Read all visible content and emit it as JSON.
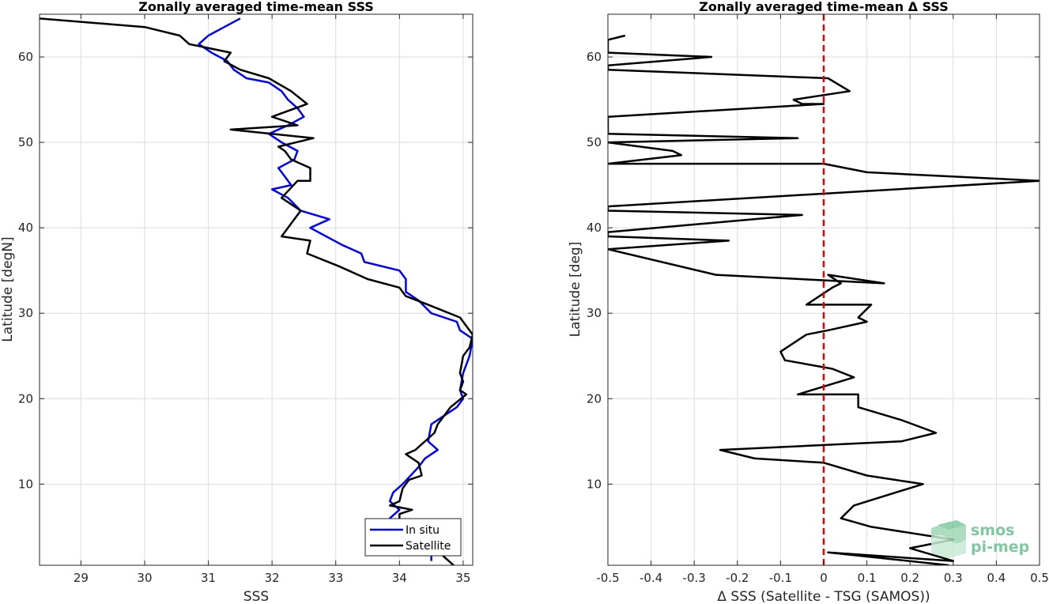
{
  "chart_data": [
    {
      "type": "line",
      "title": "Zonally averaged time-mean SSS",
      "xlabel": "SSS",
      "ylabel": "Latitude [degN]",
      "xlim": [
        28.35,
        35.15
      ],
      "ylim": [
        0.5,
        65
      ],
      "xticks": [
        29,
        30,
        31,
        32,
        33,
        34,
        35
      ],
      "yticks": [
        10,
        20,
        30,
        40,
        50,
        60
      ],
      "grid": true,
      "legend_position": "bottom-right",
      "series": [
        {
          "name": "In situ",
          "color": "#0000ff",
          "x": [
            31.5,
            31.25,
            31.0,
            30.85,
            31.05,
            31.3,
            31.4,
            31.6,
            31.95,
            32.15,
            32.25,
            32.4,
            32.5,
            32.25,
            31.95,
            32.15,
            32.4,
            32.35,
            32.1,
            32.2,
            32.3,
            32.0,
            32.25,
            32.45,
            32.9,
            32.6,
            32.85,
            33.1,
            33.4,
            33.45,
            34.0,
            34.1,
            34.1,
            34.3,
            34.5,
            34.9,
            34.95,
            35.15,
            35.1,
            35.0,
            34.95,
            35.0,
            34.9,
            34.5,
            34.45,
            34.6,
            34.4,
            34.3,
            34.05,
            33.9,
            33.85,
            34.0,
            33.85,
            34.5,
            34.5
          ],
          "y": [
            64.5,
            63.5,
            62.5,
            61.5,
            60.5,
            59.5,
            58.5,
            57.5,
            57.0,
            56.0,
            55.0,
            54.0,
            53.0,
            52.0,
            51.0,
            50.0,
            49.0,
            48.0,
            47.0,
            46.0,
            45.0,
            44.5,
            43.5,
            42.0,
            41.0,
            40.0,
            39.0,
            38.0,
            37.0,
            36.0,
            35.0,
            34.0,
            32.5,
            31.5,
            30.0,
            29.0,
            28.0,
            27.0,
            25.0,
            23.0,
            21.0,
            20.0,
            19.0,
            17.0,
            15.0,
            14.0,
            13.0,
            12.0,
            10.0,
            9.0,
            8.0,
            7.0,
            6.0,
            3.0,
            1.0
          ]
        },
        {
          "name": "Satellite",
          "color": "#000000",
          "x": [
            28.35,
            30.0,
            30.55,
            30.7,
            31.35,
            31.25,
            31.5,
            31.95,
            32.3,
            32.55,
            32.0,
            32.4,
            31.35,
            32.65,
            32.1,
            32.2,
            32.3,
            32.6,
            32.6,
            32.4,
            32.15,
            32.45,
            32.35,
            32.15,
            32.6,
            32.55,
            33.05,
            33.5,
            34.0,
            34.1,
            34.45,
            34.95,
            35.15,
            35.1,
            35.0,
            34.95,
            35.0,
            34.95,
            35.05,
            34.8,
            34.6,
            34.55,
            34.25,
            34.1,
            34.3,
            34.35,
            34.15,
            34.05,
            34.0,
            33.85,
            34.2,
            34.0,
            34.0,
            34.55,
            34.85
          ],
          "y": [
            64.5,
            63.5,
            62.5,
            61.5,
            60.5,
            59.5,
            58.5,
            57.5,
            56.0,
            54.5,
            53.0,
            52.0,
            51.5,
            50.5,
            49.5,
            49.0,
            48.0,
            47.0,
            45.5,
            45.5,
            43.5,
            42.0,
            41.0,
            39.0,
            38.5,
            37.0,
            35.5,
            34.0,
            33.0,
            32.0,
            31.0,
            29.5,
            27.5,
            26.0,
            25.0,
            23.0,
            22.0,
            21.0,
            20.5,
            19.0,
            17.0,
            16.0,
            14.0,
            13.5,
            12.5,
            11.0,
            10.5,
            9.5,
            8.0,
            7.5,
            7.0,
            6.5,
            5.0,
            2.5,
            0.5
          ]
        }
      ]
    },
    {
      "type": "line",
      "title": "Zonally averaged time-mean Δ SSS",
      "xlabel": "Δ SSS (Satellite - TSG (SAMOS))",
      "ylabel": "Latitude [deg]",
      "xlim": [
        -0.5,
        0.5
      ],
      "ylim": [
        0.5,
        65
      ],
      "xticks": [
        -0.5,
        -0.4,
        -0.3,
        -0.2,
        -0.1,
        0,
        0.1,
        0.2,
        0.3,
        0.4,
        0.5
      ],
      "xtick_labels": [
        "-0.5",
        "-0.4",
        "-0.3",
        "-0.2",
        "-0.1",
        "0",
        "0.1",
        "0.2",
        "0.3",
        "0.4",
        "0.5"
      ],
      "yticks": [
        10,
        20,
        30,
        40,
        50,
        60
      ],
      "grid": true,
      "zero_line": {
        "x": 0,
        "color": "#e60000",
        "style": "dashed"
      },
      "series": [
        {
          "color": "#000000",
          "x": [
            -0.46,
            -0.5,
            -0.5,
            -0.26,
            -0.5,
            -0.5,
            0.01,
            0.06,
            -0.07,
            -0.05,
            0.0,
            -0.5,
            -0.5,
            -0.06,
            -0.5,
            -0.35,
            -0.33,
            -0.5,
            0.0,
            0.1,
            0.5,
            0.5,
            -0.5,
            -0.5,
            -0.05,
            -0.5,
            -0.5,
            -0.22,
            -0.5,
            -0.5,
            -0.25,
            0.14,
            0.01,
            0.04,
            0.02,
            -0.04,
            0.11,
            0.08,
            0.1,
            0.01,
            -0.04,
            -0.1,
            -0.09,
            0.02,
            0.07,
            -0.06,
            0.08,
            0.08,
            0.18,
            0.26,
            0.18,
            -0.24,
            -0.16,
            0.0,
            0.1,
            0.23,
            0.07,
            0.04,
            0.11,
            0.3,
            0.2,
            0.3,
            0.01,
            0.29
          ],
          "y": [
            62.5,
            62.0,
            60.5,
            60.0,
            59.0,
            58.5,
            57.5,
            56.0,
            55.0,
            54.5,
            54.5,
            53.0,
            51.0,
            50.5,
            50.0,
            49.0,
            48.5,
            47.5,
            47.5,
            46.5,
            45.5,
            45.5,
            42.5,
            42.0,
            41.5,
            39.5,
            39.0,
            38.5,
            37.5,
            37.5,
            34.5,
            33.5,
            34.5,
            33.5,
            33.0,
            31.0,
            31.0,
            29.5,
            29.0,
            28.0,
            27.5,
            25.5,
            24.5,
            23.5,
            22.5,
            20.5,
            20.5,
            19.0,
            17.5,
            16.0,
            15.0,
            14.0,
            13.0,
            12.5,
            11.0,
            10.0,
            7.5,
            6.0,
            5.0,
            3.5,
            2.5,
            1.0,
            2.0,
            0.5
          ]
        }
      ]
    }
  ],
  "legend": {
    "items": [
      {
        "label": "In situ",
        "color": "#0000ff"
      },
      {
        "label": "Satellite",
        "color": "#000000"
      }
    ]
  },
  "logo": {
    "line1": "smos",
    "line2": "pi-mep",
    "color": "#7ec9a0"
  }
}
